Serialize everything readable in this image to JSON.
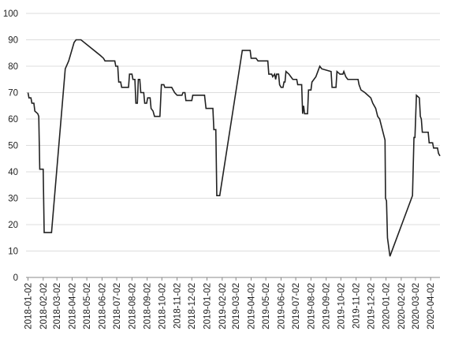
{
  "chart_data": {
    "type": "line",
    "color": "#222222",
    "x": [
      "2018-01-02",
      "2018-01-04",
      "2018-01-08",
      "2018-01-10",
      "2018-01-14",
      "2018-01-16",
      "2018-01-22",
      "2018-01-24",
      "2018-01-26",
      "2018-02-02",
      "2018-02-04",
      "2018-02-19",
      "2018-03-19",
      "2018-03-26",
      "2018-04-06",
      "2018-04-10",
      "2018-04-20",
      "2018-05-30",
      "2018-06-05",
      "2018-06-08",
      "2018-06-28",
      "2018-06-30",
      "2018-07-04",
      "2018-07-06",
      "2018-07-10",
      "2018-07-12",
      "2018-07-26",
      "2018-07-28",
      "2018-08-02",
      "2018-08-04",
      "2018-08-08",
      "2018-08-10",
      "2018-08-13",
      "2018-08-15",
      "2018-08-18",
      "2018-08-20",
      "2018-08-26",
      "2018-08-28",
      "2018-09-01",
      "2018-09-03",
      "2018-09-08",
      "2018-09-10",
      "2018-09-14",
      "2018-09-17",
      "2018-09-28",
      "2018-10-01",
      "2018-10-06",
      "2018-10-08",
      "2018-10-22",
      "2018-10-28",
      "2018-11-02",
      "2018-11-12",
      "2018-11-14",
      "2018-11-18",
      "2018-11-20",
      "2018-12-02",
      "2018-12-04",
      "2018-12-28",
      "2018-12-31",
      "2019-01-14",
      "2019-01-16",
      "2019-01-20",
      "2019-01-22",
      "2019-01-28",
      "2019-03-15",
      "2019-03-31",
      "2019-04-02",
      "2019-04-12",
      "2019-04-16",
      "2019-05-06",
      "2019-05-08",
      "2019-05-14",
      "2019-05-16",
      "2019-05-20",
      "2019-05-22",
      "2019-05-24",
      "2019-05-28",
      "2019-05-30",
      "2019-06-02",
      "2019-06-06",
      "2019-06-08",
      "2019-06-10",
      "2019-06-12",
      "2019-06-18",
      "2019-06-22",
      "2019-06-26",
      "2019-07-04",
      "2019-07-06",
      "2019-07-14",
      "2019-07-16",
      "2019-07-18",
      "2019-07-20",
      "2019-07-26",
      "2019-07-28",
      "2019-08-02",
      "2019-08-04",
      "2019-08-08",
      "2019-08-12",
      "2019-08-16",
      "2019-08-20",
      "2019-08-24",
      "2019-09-12",
      "2019-09-14",
      "2019-09-22",
      "2019-09-24",
      "2019-09-30",
      "2019-10-06",
      "2019-10-08",
      "2019-10-12",
      "2019-10-16",
      "2019-11-06",
      "2019-11-08",
      "2019-11-12",
      "2019-11-20",
      "2019-11-26",
      "2019-12-02",
      "2019-12-06",
      "2019-12-12",
      "2019-12-16",
      "2019-12-20",
      "2019-12-31",
      "2020-01-01",
      "2020-01-03",
      "2020-01-05",
      "2020-01-10",
      "2020-02-25",
      "2020-02-28",
      "2020-03-01",
      "2020-03-04",
      "2020-03-10",
      "2020-03-12",
      "2020-03-14",
      "2020-03-16",
      "2020-03-20",
      "2020-03-28",
      "2020-03-30",
      "2020-04-06",
      "2020-04-08",
      "2020-04-16",
      "2020-04-18",
      "2020-04-21"
    ],
    "values": [
      70,
      68,
      68,
      66,
      66,
      63,
      62,
      61,
      41,
      41,
      17,
      17,
      79,
      82,
      89,
      90,
      90,
      84,
      83,
      82,
      82,
      80,
      80,
      74,
      74,
      72,
      72,
      77,
      77,
      75,
      75,
      66,
      66,
      75,
      75,
      70,
      70,
      66,
      66,
      68,
      68,
      64,
      63,
      61,
      61,
      73,
      73,
      72,
      72,
      70,
      69,
      69,
      70,
      70,
      67,
      67,
      69,
      69,
      64,
      64,
      56,
      56,
      31,
      31,
      86,
      86,
      83,
      83,
      82,
      82,
      77,
      77,
      76,
      77,
      75,
      77,
      77,
      73,
      72,
      72,
      74,
      74,
      78,
      77,
      76,
      75,
      75,
      73,
      73,
      62,
      65,
      62,
      62,
      71,
      71,
      74,
      75,
      76,
      78,
      80,
      79,
      78,
      72,
      72,
      78,
      77,
      77,
      78,
      76,
      75,
      75,
      73,
      71,
      70,
      69,
      68,
      66,
      64,
      61,
      60,
      52,
      30,
      29,
      15,
      8,
      31,
      53,
      53,
      69,
      68,
      61,
      60,
      55,
      55,
      55,
      51,
      51,
      49,
      49,
      47,
      46
    ],
    "xlim": [
      "2017-12-29",
      "2020-04-21"
    ],
    "xticks": [
      "2018-01-02",
      "2018-02-02",
      "2018-03-02",
      "2018-04-02",
      "2018-05-02",
      "2018-06-02",
      "2018-07-02",
      "2018-08-02",
      "2018-09-02",
      "2018-10-02",
      "2018-11-02",
      "2018-12-02",
      "2019-01-02",
      "2019-02-02",
      "2019-03-02",
      "2019-04-02",
      "2019-05-02",
      "2019-06-02",
      "2019-07-02",
      "2019-08-02",
      "2019-09-02",
      "2019-10-02",
      "2019-11-02",
      "2019-12-02",
      "2020-01-02",
      "2020-02-02",
      "2020-03-02",
      "2020-04-02"
    ],
    "ylim": [
      0,
      100
    ],
    "yticks": [
      0,
      10,
      20,
      30,
      40,
      50,
      60,
      70,
      80,
      90,
      100
    ],
    "grid": true
  }
}
